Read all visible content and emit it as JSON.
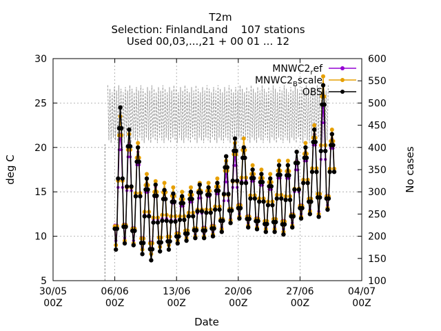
{
  "chart_data": {
    "type": "line",
    "title_lines": [
      "T2m",
      "Selection: FinlandLand    107 stations",
      "Used 00,03,...,21 + 00 01 ... 12"
    ],
    "xlabel": "Date",
    "ylabel": "deg C",
    "y2label": "No cases",
    "x_ticks": [
      {
        "date": "30/05",
        "hour": "00Z",
        "day": 0
      },
      {
        "date": "06/06",
        "hour": "00Z",
        "day": 7
      },
      {
        "date": "13/06",
        "hour": "00Z",
        "day": 14
      },
      {
        "date": "20/06",
        "hour": "00Z",
        "day": 21
      },
      {
        "date": "27/06",
        "hour": "00Z",
        "day": 28
      },
      {
        "date": "04/07",
        "hour": "00Z",
        "day": 35
      }
    ],
    "xlim_days": [
      0,
      35
    ],
    "ylim": [
      5,
      30
    ],
    "yticks": [
      5,
      10,
      15,
      20,
      25,
      30
    ],
    "y2lim": [
      100,
      600
    ],
    "y2ticks": [
      100,
      150,
      200,
      250,
      300,
      350,
      400,
      450,
      500,
      550,
      600
    ],
    "grid": true,
    "legend_position": "top-right",
    "colors": {
      "mnwc2_ref": "#9400d3",
      "mnwc2_bscale": "#e69f00",
      "obs": "#000000",
      "cases": "#999999"
    },
    "series": [
      {
        "name": "MNWC2_ref",
        "legend_label_main": "MNWC2",
        "legend_label_sub": "r",
        "legend_label_rest": "ef",
        "color": "#9400d3",
        "axis": "y",
        "daily_min": [
          null,
          null,
          null,
          null,
          null,
          null,
          null,
          9.5,
          9.8,
          9.5,
          8.8,
          8.3,
          9.0,
          9.2,
          9.8,
          10.0,
          10.2,
          10.3,
          10.5,
          11.0,
          12.0,
          12.5,
          11.5,
          11.3,
          11.0,
          11.0,
          10.8,
          11.5,
          12.5,
          13.0,
          12.8,
          13.5,
          null,
          null,
          null,
          null
        ],
        "daily_max": [
          null,
          null,
          null,
          null,
          null,
          null,
          null,
          21.5,
          20.5,
          19.5,
          16.0,
          15.5,
          15.0,
          14.5,
          14.0,
          14.5,
          15.0,
          15.2,
          15.5,
          17.0,
          19.0,
          20.0,
          17.0,
          16.5,
          16.0,
          17.5,
          17.5,
          18.5,
          19.5,
          21.5,
          24.5,
          21.0,
          null,
          null,
          null,
          null
        ]
      },
      {
        "name": "MNWC2_Bscale",
        "legend_label_main": "MNWC2",
        "legend_label_sub": "B",
        "legend_label_rest": "scale",
        "color": "#e69f00",
        "axis": "y",
        "daily_min": [
          null,
          null,
          null,
          null,
          null,
          null,
          null,
          9.0,
          9.5,
          9.2,
          8.5,
          8.0,
          8.8,
          9.0,
          9.5,
          9.8,
          10.0,
          10.0,
          10.2,
          10.8,
          11.8,
          12.2,
          11.2,
          11.0,
          10.8,
          10.8,
          10.5,
          11.2,
          12.2,
          12.8,
          12.5,
          13.2,
          null,
          null,
          null,
          null
        ],
        "daily_max": [
          null,
          null,
          null,
          null,
          null,
          null,
          null,
          23.5,
          21.5,
          20.5,
          17.0,
          16.2,
          16.0,
          15.5,
          15.0,
          15.5,
          16.0,
          16.0,
          16.5,
          18.5,
          20.5,
          21.0,
          18.0,
          17.5,
          17.0,
          18.5,
          18.5,
          19.5,
          20.5,
          22.5,
          28.0,
          22.0,
          null,
          null,
          null,
          null
        ]
      },
      {
        "name": "OBS",
        "legend_label_main": "OBS",
        "legend_label_sub": "",
        "legend_label_rest": "",
        "color": "#000000",
        "axis": "y",
        "daily_min": [
          null,
          null,
          null,
          null,
          null,
          null,
          null,
          8.5,
          9.2,
          9.0,
          8.0,
          7.3,
          8.3,
          8.5,
          9.2,
          9.5,
          9.8,
          9.8,
          10.0,
          10.5,
          11.5,
          12.0,
          11.0,
          10.8,
          10.5,
          10.5,
          10.2,
          11.0,
          12.0,
          12.5,
          12.2,
          13.0,
          null,
          null,
          null,
          null
        ],
        "daily_max": [
          null,
          null,
          null,
          null,
          null,
          null,
          null,
          24.5,
          22.0,
          20.0,
          16.5,
          15.8,
          15.2,
          14.8,
          14.5,
          15.0,
          15.8,
          15.5,
          16.0,
          19.0,
          21.0,
          20.0,
          17.5,
          17.0,
          16.5,
          18.0,
          18.0,
          19.5,
          20.0,
          22.0,
          27.0,
          21.5,
          null,
          null,
          null,
          null
        ]
      },
      {
        "name": "No cases",
        "color": "#999999",
        "axis": "y2",
        "dashed": true,
        "low": 410,
        "high": 540,
        "start_day": 6.2,
        "end_day": 31.2
      }
    ]
  }
}
